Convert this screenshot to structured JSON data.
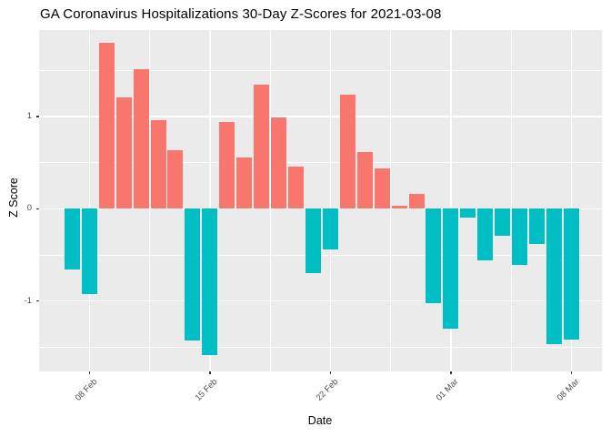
{
  "chart_data": {
    "type": "bar",
    "title": "GA Coronavirus Hospitalizations 30-Day Z-Scores for 2021-03-08",
    "xlabel": "Date",
    "ylabel": "Z Score",
    "dates": [
      "2021-02-07",
      "2021-02-08",
      "2021-02-09",
      "2021-02-10",
      "2021-02-11",
      "2021-02-12",
      "2021-02-13",
      "2021-02-14",
      "2021-02-15",
      "2021-02-16",
      "2021-02-17",
      "2021-02-18",
      "2021-02-19",
      "2021-02-20",
      "2021-02-21",
      "2021-02-22",
      "2021-02-23",
      "2021-02-24",
      "2021-02-25",
      "2021-02-26",
      "2021-02-27",
      "2021-02-28",
      "2021-03-01",
      "2021-03-02",
      "2021-03-03",
      "2021-03-04",
      "2021-03-05",
      "2021-03-06",
      "2021-03-07",
      "2021-03-08"
    ],
    "values": [
      -0.66,
      -0.93,
      1.8,
      1.21,
      1.52,
      0.96,
      0.64,
      -1.43,
      -1.59,
      0.94,
      0.56,
      1.35,
      0.99,
      0.46,
      -0.7,
      -0.44,
      1.24,
      0.62,
      0.44,
      0.03,
      0.16,
      -1.02,
      -1.3,
      -0.1,
      -0.56,
      -0.29,
      -0.61,
      -0.38,
      -1.47,
      -1.42
    ],
    "x_ticks": [
      {
        "label": "08 Feb",
        "day": 1
      },
      {
        "label": "15 Feb",
        "day": 8
      },
      {
        "label": "22 Feb",
        "day": 15
      },
      {
        "label": "01 Mar",
        "day": 22
      },
      {
        "label": "08 Mar",
        "day": 29
      }
    ],
    "x_minor_days": [
      4.5,
      11.5,
      18.5,
      25.5
    ],
    "y_ticks": [
      {
        "label": "1",
        "value": 1
      },
      {
        "label": "0",
        "value": 0
      },
      {
        "label": "-1",
        "value": -1
      }
    ],
    "y_minor_values": [
      1.5,
      0.5,
      -0.5,
      -1.5
    ],
    "ylim": [
      -1.76,
      1.94
    ],
    "grid": "on",
    "legend": "none",
    "colors": {
      "positive": "#F8766D",
      "negative": "#00BFC4",
      "panel_bg": "#EBEBEB",
      "grid": "#FFFFFF",
      "tick_text": "#4D4D4D",
      "tick_mark": "#333333",
      "title_text": "#000000"
    }
  }
}
